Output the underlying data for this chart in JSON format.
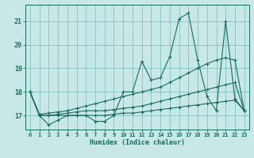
{
  "bg_color": "#c8e8e8",
  "grid_color": "#7ab8b8",
  "line_color": "#1a6b5e",
  "xlabel": "Humidex (Indice chaleur)",
  "xlim": [
    -0.5,
    23.5
  ],
  "ylim": [
    16.4,
    21.7
  ],
  "yticks": [
    17,
    18,
    19,
    20,
    21
  ],
  "xticks": [
    0,
    1,
    2,
    3,
    4,
    5,
    6,
    7,
    8,
    9,
    10,
    11,
    12,
    13,
    14,
    15,
    16,
    17,
    18,
    19,
    20,
    21,
    22,
    23
  ],
  "series": [
    [
      18.0,
      17.0,
      16.6,
      16.8,
      17.0,
      17.0,
      17.0,
      16.75,
      16.75,
      17.0,
      18.0,
      18.0,
      19.3,
      18.5,
      18.6,
      19.5,
      21.1,
      21.35,
      19.35,
      17.8,
      17.2,
      21.0,
      17.7,
      17.2
    ],
    [
      18.0,
      17.05,
      17.1,
      17.15,
      17.2,
      17.3,
      17.4,
      17.5,
      17.6,
      17.7,
      17.8,
      17.9,
      18.0,
      18.1,
      18.2,
      18.4,
      18.6,
      18.8,
      19.0,
      19.2,
      19.35,
      19.45,
      19.35,
      17.2
    ],
    [
      18.0,
      17.0,
      17.0,
      17.0,
      17.0,
      17.0,
      17.0,
      17.0,
      17.0,
      17.05,
      17.1,
      17.1,
      17.15,
      17.2,
      17.25,
      17.3,
      17.35,
      17.4,
      17.45,
      17.5,
      17.55,
      17.6,
      17.65,
      17.2
    ],
    [
      18.0,
      17.0,
      17.0,
      17.05,
      17.1,
      17.15,
      17.2,
      17.2,
      17.2,
      17.25,
      17.3,
      17.35,
      17.4,
      17.5,
      17.6,
      17.7,
      17.8,
      17.9,
      18.0,
      18.1,
      18.2,
      18.3,
      18.4,
      17.2
    ]
  ]
}
